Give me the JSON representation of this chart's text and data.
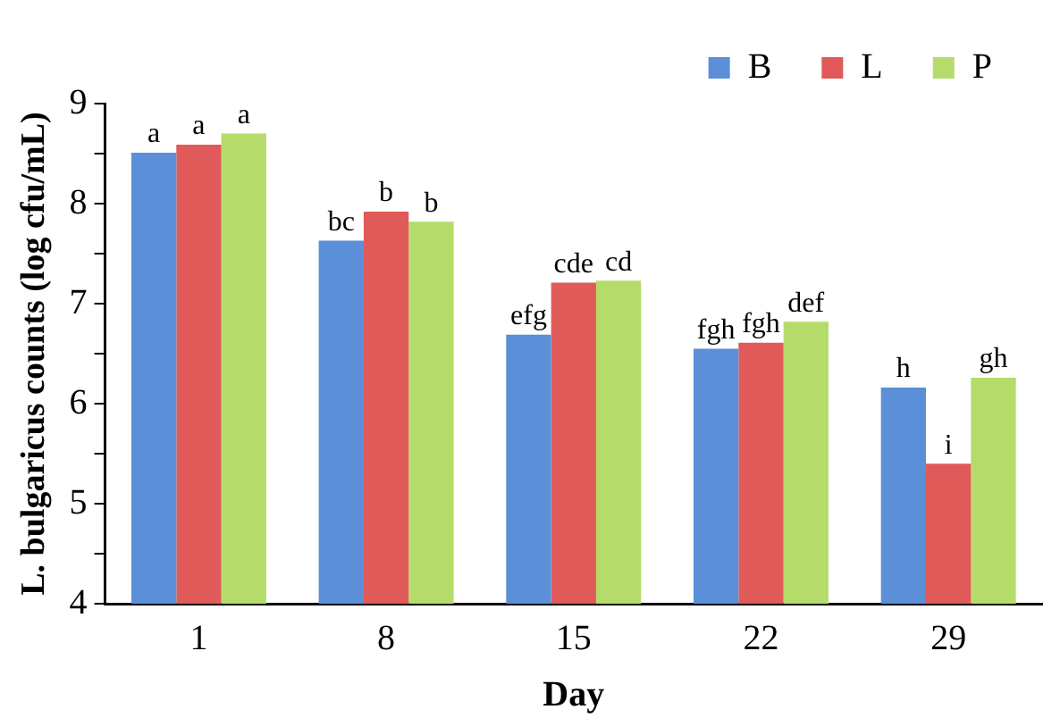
{
  "chart_data": {
    "type": "bar",
    "xlabel": "Day",
    "ylabel": "L. bulgaricus counts (log cfu/mL)",
    "categories": [
      "1",
      "8",
      "15",
      "22",
      "29"
    ],
    "series": [
      {
        "name": "B",
        "color": "#5b8fd8",
        "values": [
          8.51,
          7.63,
          6.69,
          6.55,
          6.16
        ],
        "value_labels": [
          "a",
          "bc",
          "efg",
          "fgh",
          "h"
        ]
      },
      {
        "name": "L",
        "color": "#e05a5a",
        "values": [
          8.59,
          7.92,
          7.21,
          6.61,
          5.4
        ],
        "value_labels": [
          "a",
          "b",
          "cde",
          "fgh",
          "i"
        ]
      },
      {
        "name": "P",
        "color": "#b5dc6a",
        "values": [
          8.7,
          7.82,
          7.23,
          6.82,
          6.26
        ],
        "value_labels": [
          "a",
          "b",
          "cd",
          "def",
          "gh"
        ]
      }
    ],
    "ylim": [
      4,
      9
    ],
    "yticks": [
      4,
      {
        "value": 4.5,
        "label": null
      },
      5,
      {
        "value": 5.5,
        "label": null
      },
      6,
      {
        "value": 6.5,
        "label": null
      },
      7,
      {
        "value": 7.5,
        "label": null
      },
      8,
      {
        "value": 8.5,
        "label": null
      },
      9
    ],
    "grid": false,
    "legend": "top"
  }
}
